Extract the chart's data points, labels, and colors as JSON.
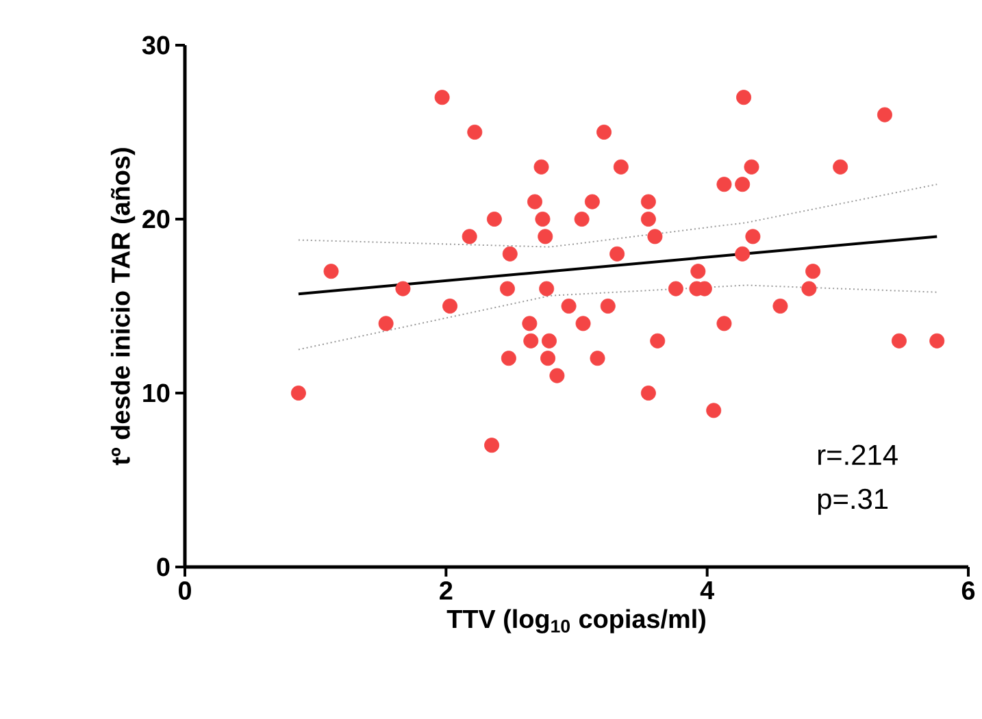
{
  "chart_data": {
    "type": "scatter",
    "xlabel": "TTV (log$_{10}$ copias/ml)",
    "ylabel": "tº desde inicio TAR (años)",
    "xlim": [
      0,
      6
    ],
    "ylim": [
      0,
      30
    ],
    "xticks": [
      0,
      2,
      4,
      6
    ],
    "yticks": [
      0,
      10,
      20,
      30
    ],
    "grid": false,
    "annotations": [
      "r=.214",
      "p=.31"
    ],
    "series": [
      {
        "color": "#f44545",
        "marker": "circle",
        "x": [
          0.87,
          1.12,
          1.67,
          1.54,
          1.97,
          2.22,
          2.03,
          2.18,
          2.37,
          2.49,
          2.47,
          2.48,
          2.35,
          2.73,
          2.68,
          2.74,
          2.76,
          2.77,
          2.64,
          2.65,
          2.79,
          2.78,
          2.85,
          2.94,
          3.05,
          3.04,
          3.12,
          3.16,
          3.21,
          3.34,
          3.31,
          3.24,
          3.55,
          3.55,
          3.6,
          3.76,
          3.62,
          3.55,
          3.93,
          3.98,
          3.92,
          4.13,
          4.05,
          4.13,
          4.27,
          4.34,
          4.28,
          4.35,
          4.27,
          4.56,
          4.81,
          4.78,
          5.02,
          5.36,
          5.47,
          5.76
        ],
        "values": [
          10,
          17,
          16,
          14,
          27,
          25,
          15,
          19,
          20,
          18,
          16,
          12,
          7,
          23,
          21,
          20,
          19,
          16,
          14,
          13,
          13,
          12,
          11,
          15,
          14,
          20,
          21,
          12,
          25,
          23,
          18,
          15,
          21,
          20,
          19,
          16,
          13,
          10,
          17,
          16,
          16,
          14,
          9,
          22,
          22,
          23,
          27,
          19,
          18,
          15,
          17,
          16,
          23,
          26,
          13,
          13
        ]
      },
      {
        "type": "line",
        "marker": "none",
        "color": "#000000",
        "x": [
          0.87,
          5.76
        ],
        "values": [
          15.7,
          19.0
        ]
      },
      {
        "type": "line",
        "marker": "none",
        "color": "#999999",
        "line_style": "dotted",
        "x": [
          0.87,
          2.8,
          4.3,
          5.76
        ],
        "values": [
          18.8,
          18.4,
          19.8,
          22.0
        ]
      },
      {
        "type": "line",
        "marker": "none",
        "color": "#999999",
        "line_style": "dotted",
        "x": [
          0.87,
          2.8,
          4.3,
          5.76
        ],
        "values": [
          12.5,
          15.6,
          16.2,
          15.8
        ]
      }
    ]
  }
}
